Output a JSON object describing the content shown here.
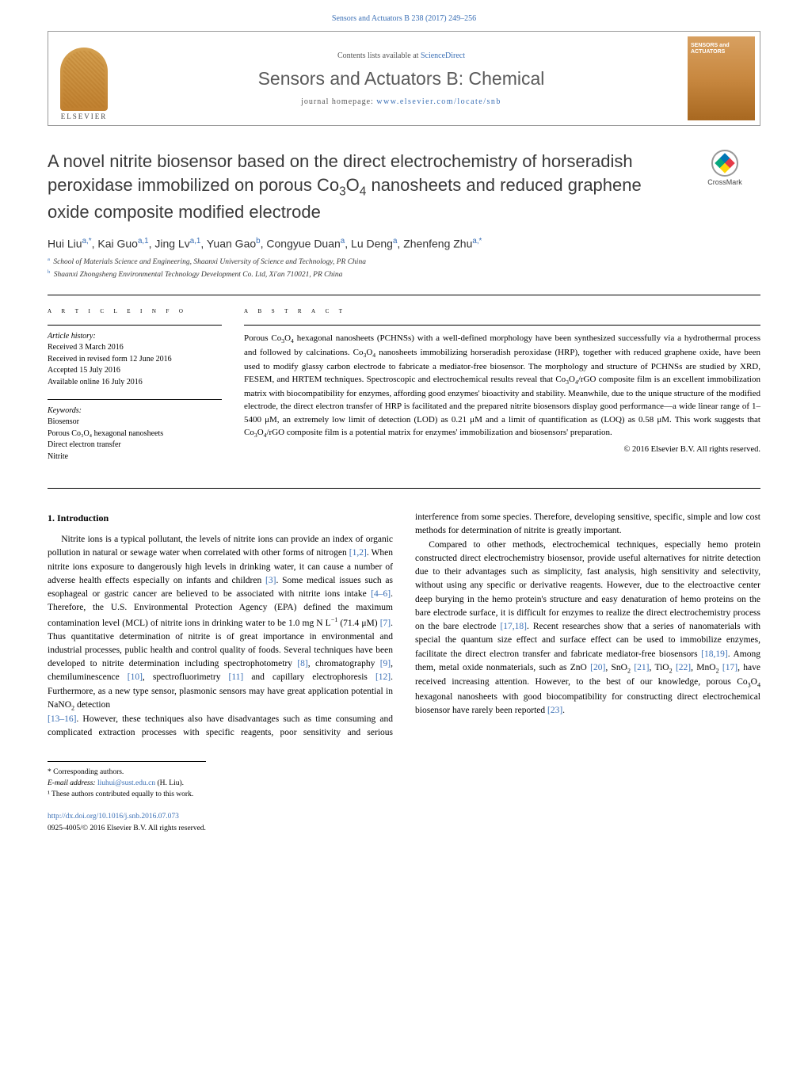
{
  "citation": "Sensors and Actuators B 238 (2017) 249–256",
  "header": {
    "contents_prefix": "Contents lists available at ",
    "contents_link": "ScienceDirect",
    "journal": "Sensors and Actuators B: Chemical",
    "homepage_prefix": "journal homepage: ",
    "homepage_link": "www.elsevier.com/locate/snb",
    "publisher": "ELSEVIER",
    "cover_line1": "SENSORS and",
    "cover_line2": "ACTUATORS"
  },
  "crossmark": "CrossMark",
  "title_html": "A novel nitrite biosensor based on the direct electrochemistry of horseradish peroxidase immobilized on porous Co<sub>3</sub>O<sub>4</sub> nanosheets and reduced graphene oxide composite modified electrode",
  "authors_html": "Hui Liu<sup>a,*</sup>, Kai Guo<sup>a,1</sup>, Jing Lv<sup>a,1</sup>, Yuan Gao<sup>b</sup>, Congyue Duan<sup>a</sup>, Lu Deng<sup>a</sup>, Zhenfeng Zhu<sup>a,*</sup>",
  "affiliations": [
    {
      "sup": "a",
      "text": "School of Materials Science and Engineering, Shaanxi University of Science and Technology, PR China"
    },
    {
      "sup": "b",
      "text": "Shaanxi Zhongsheng Environmental Technology Development Co. Ltd, Xi'an 710021, PR China"
    }
  ],
  "article_info": {
    "label": "a r t i c l e   i n f o",
    "history_heading": "Article history:",
    "history": [
      "Received 3 March 2016",
      "Received in revised form 12 June 2016",
      "Accepted 15 July 2016",
      "Available online 16 July 2016"
    ],
    "keywords_heading": "Keywords:",
    "keywords": [
      "Biosensor",
      "Porous Co₃O₄ hexagonal nanosheets",
      "Direct electron transfer",
      "Nitrite"
    ]
  },
  "abstract": {
    "label": "a b s t r a c t",
    "text_html": "Porous Co<sub>3</sub>O<sub>4</sub> hexagonal nanosheets (PCHNSs) with a well-defined morphology have been synthesized successfully via a hydrothermal process and followed by calcinations. Co<sub>3</sub>O<sub>4</sub> nanosheets immobilizing horseradish peroxidase (HRP), together with reduced graphene oxide, have been used to modify glassy carbon electrode to fabricate a mediator-free biosensor. The morphology and structure of PCHNSs are studied by XRD, FESEM, and HRTEM techniques. Spectroscopic and electrochemical results reveal that Co<sub>3</sub>O<sub>4</sub>/rGO composite film is an excellent immobilization matrix with biocompatibility for enzymes, affording good enzymes' bioactivity and stability. Meanwhile, due to the unique structure of the modified electrode, the direct electron transfer of HRP is facilitated and the prepared nitrite biosensors display good performance—a wide linear range of 1–5400 μM, an extremely low limit of detection (LOD) as 0.21 μM and a limit of quantification as (LOQ) as 0.58 μM. This work suggests that Co<sub>3</sub>O<sub>4</sub>/rGO composite film is a potential matrix for enzymes' immobilization and biosensors' preparation.",
    "copyright": "© 2016 Elsevier B.V. All rights reserved."
  },
  "body": {
    "section_number": "1.",
    "section_title": "Introduction",
    "para1_html": "Nitrite ions is a typical pollutant, the levels of nitrite ions can provide an index of organic pollution in natural or sewage water when correlated with other forms of nitrogen <span class=\"ref\">[1,2]</span>. When nitrite ions exposure to dangerously high levels in drinking water, it can cause a number of adverse health effects especially on infants and children <span class=\"ref\">[3]</span>. Some medical issues such as esophageal or gastric cancer are believed to be associated with nitrite ions intake <span class=\"ref\">[4–6]</span>. Therefore, the U.S. Environmental Protection Agency (EPA) defined the maximum contamination level (MCL) of nitrite ions in drinking water to be 1.0 mg N L<sup>−1</sup> (71.4 μM) <span class=\"ref\">[7]</span>. Thus quantitative determination of nitrite is of great importance in environmental and industrial processes, public health and control quality of foods. Several techniques have been developed to nitrite determination including spectrophotometry <span class=\"ref\">[8]</span>, chromatography <span class=\"ref\">[9]</span>, chemiluminescence <span class=\"ref\">[10]</span>, spectrofluorimetry <span class=\"ref\">[11]</span> and capillary electrophoresis <span class=\"ref\">[12]</span>. Furthermore, as a new type sensor, plasmonic sensors may have great application potential in NaNO<sub>2</sub> detection",
    "para2_html": "<span class=\"ref\">[13–16]</span>. However, these techniques also have disadvantages such as time consuming and complicated extraction processes with specific reagents, poor sensitivity and serious interference from some species. Therefore, developing sensitive, specific, simple and low cost methods for determination of nitrite is greatly important.",
    "para3_html": "Compared to other methods, electrochemical techniques, especially hemo protein constructed direct electrochemistry biosensor, provide useful alternatives for nitrite detection due to their advantages such as simplicity, fast analysis, high sensitivity and selectivity, without using any specific or derivative reagents. However, due to the electroactive center deep burying in the hemo protein's structure and easy denaturation of hemo proteins on the bare electrode surface, it is difficult for enzymes to realize the direct electrochemistry process on the bare electrode <span class=\"ref\">[17,18]</span>. Recent researches show that a series of nanomaterials with special the quantum size effect and surface effect can be used to immobilize enzymes, facilitate the direct electron transfer and fabricate mediator-free biosensors <span class=\"ref\">[18,19]</span>. Among them, metal oxide nonmaterials, such as ZnO <span class=\"ref\">[20]</span>, SnO<sub>2</sub> <span class=\"ref\">[21]</span>, TiO<sub>2</sub> <span class=\"ref\">[22]</span>, MnO<sub>2</sub> <span class=\"ref\">[17]</span>, have received increasing attention. However, to the best of our knowledge, porous Co<sub>3</sub>O<sub>4</sub> hexagonal nanosheets with good biocompatibility for constructing direct electrochemical biosensor have rarely been reported <span class=\"ref\">[23]</span>."
  },
  "footnotes": {
    "corresponding": "* Corresponding authors.",
    "email_label": "E-mail address: ",
    "email_addr": "liuhui@sust.edu.cn",
    "email_name": " (H. Liu).",
    "contrib": "¹ These authors contributed equally to this work."
  },
  "footer": {
    "doi": "http://dx.doi.org/10.1016/j.snb.2016.07.073",
    "issn_line": "0925-4005/© 2016 Elsevier B.V. All rights reserved."
  },
  "colors": {
    "link": "#3a6fb5",
    "text": "#000000",
    "heading_gray": "#5a5a5a",
    "cover_gradient_top": "#d8a060",
    "cover_gradient_bottom": "#a86820"
  }
}
